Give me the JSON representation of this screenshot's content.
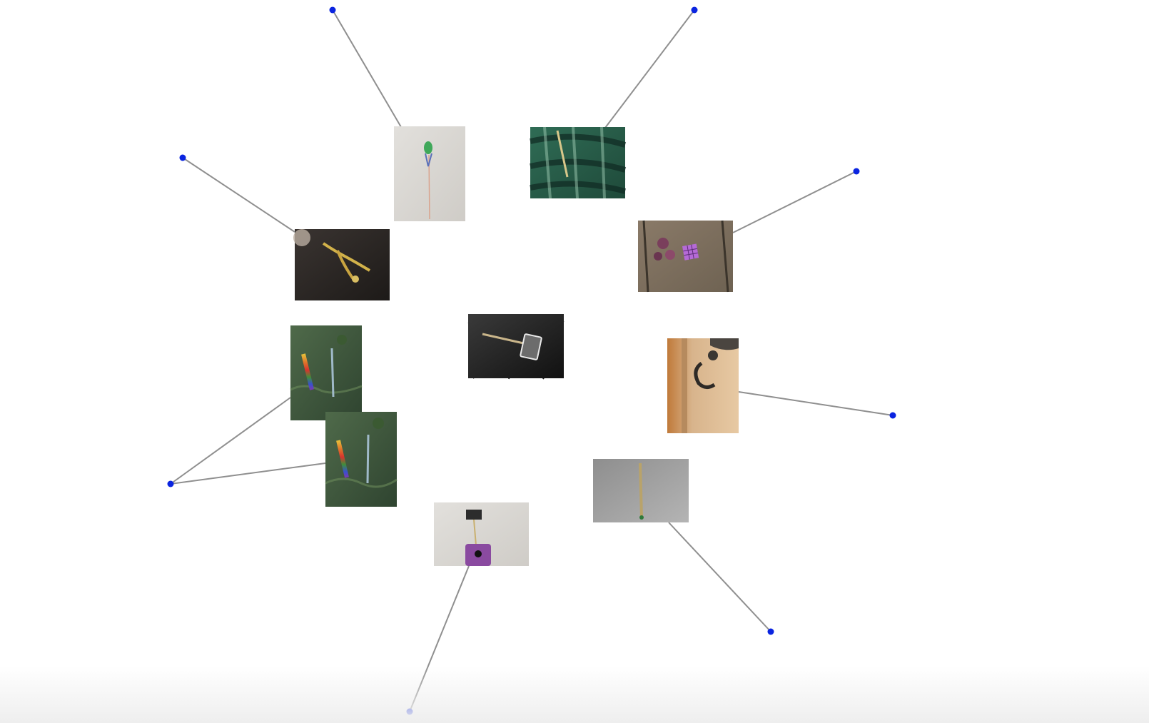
{
  "colors": {
    "background": "#ffffff",
    "center_edge": "#1a1a1a",
    "outer_edge": "#8f8f8f",
    "handle": "#0a24e0"
  },
  "center_node": {
    "id": "center",
    "icon": "sign-on-stick-photo"
  },
  "thumbnails": [
    {
      "id": "t0",
      "icon": "green-puff-stick-photo"
    },
    {
      "id": "t1",
      "icon": "plaid-fabric-stick-photo"
    },
    {
      "id": "t2",
      "icon": "rubiks-cube-flowers-photo"
    },
    {
      "id": "t3",
      "icon": "door-hook-photo"
    },
    {
      "id": "t4",
      "icon": "carpet-stick-photo"
    },
    {
      "id": "t5",
      "icon": "purple-phone-stick-photo"
    },
    {
      "id": "t6",
      "icon": "rainbow-stick-grass-photo"
    },
    {
      "id": "t7",
      "icon": "rainbow-stick-grass-photo-alt"
    },
    {
      "id": "t8",
      "icon": "gold-jewelry-photo"
    }
  ],
  "handles": [
    {
      "id": "h0",
      "icon": "handle-dot"
    },
    {
      "id": "h1",
      "icon": "handle-dot"
    },
    {
      "id": "h2",
      "icon": "handle-dot"
    },
    {
      "id": "h3",
      "icon": "handle-dot"
    },
    {
      "id": "h4",
      "icon": "handle-dot"
    },
    {
      "id": "h5",
      "icon": "handle-dot"
    },
    {
      "id": "h6",
      "icon": "handle-dot"
    },
    {
      "id": "h7",
      "icon": "handle-dot"
    }
  ],
  "edges_center": [
    "t0",
    "t1",
    "t2",
    "t3",
    "t4",
    "t5",
    "t6",
    "t7",
    "t8"
  ],
  "edges_outer": [
    [
      "t0",
      "h0"
    ],
    [
      "t1",
      "h1"
    ],
    [
      "t2",
      "h2"
    ],
    [
      "t3",
      "h3"
    ],
    [
      "t4",
      "h4"
    ],
    [
      "t5",
      "h5"
    ],
    [
      "t6",
      "h6"
    ],
    [
      "t7",
      "h6"
    ],
    [
      "t8",
      "h7"
    ]
  ]
}
